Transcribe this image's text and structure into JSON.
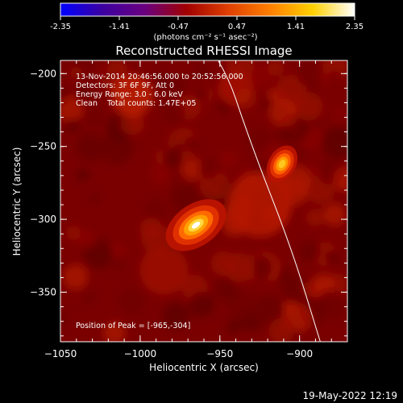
{
  "colorbar": {
    "ticks": [
      -2.35,
      -1.41,
      -0.47,
      0.47,
      1.41,
      2.35
    ],
    "tick_labels": [
      "-2.35",
      "-1.41",
      "-0.47",
      "0.47",
      "1.41",
      "2.35"
    ],
    "units": "(photons cm⁻² s⁻¹ asec⁻²)",
    "colormap": [
      "#0000ff",
      "#3c00a0",
      "#6a0080",
      "#a00000",
      "#e04000",
      "#ff8000",
      "#ffd000",
      "#ffffff"
    ]
  },
  "chart_data": {
    "type": "heatmap",
    "title": "Reconstructed RHESSI Image",
    "xlabel": "Heliocentric X (arcsec)",
    "ylabel": "Heliocentric Y (arcsec)",
    "xlim": [
      -1050,
      -870
    ],
    "ylim": [
      -384,
      -191
    ],
    "xticks": [
      -1050,
      -1000,
      -950,
      -900
    ],
    "xtick_labels": [
      "−1050",
      "−1000",
      "−950",
      "−900"
    ],
    "yticks": [
      -200,
      -250,
      -300,
      -350
    ],
    "ytick_labels": [
      "−200",
      "−250",
      "−300",
      "−350"
    ],
    "sources": [
      {
        "x": -965,
        "y": -304,
        "peak": 2.35
      },
      {
        "x": -911,
        "y": -262,
        "peak": 1.9
      }
    ],
    "limb": [
      [
        -1000,
        -130
      ],
      [
        -950,
        -185
      ],
      [
        -930,
        -250
      ],
      [
        -905,
        -320
      ],
      [
        -887,
        -384
      ]
    ],
    "annotations": {
      "time": "13-Nov-2014 20:46:56.000 to 20:52:56.000",
      "detectors": "Detectors: 3F 6F 9F, Att 0",
      "energy": "Energy Range: 3.0 - 6.0 keV",
      "method": "Clean    Total counts: 1.47E+05",
      "peak": "Position of Peak = [-965,-304]"
    }
  },
  "footer": {
    "date": "19-May-2022 12:19"
  }
}
